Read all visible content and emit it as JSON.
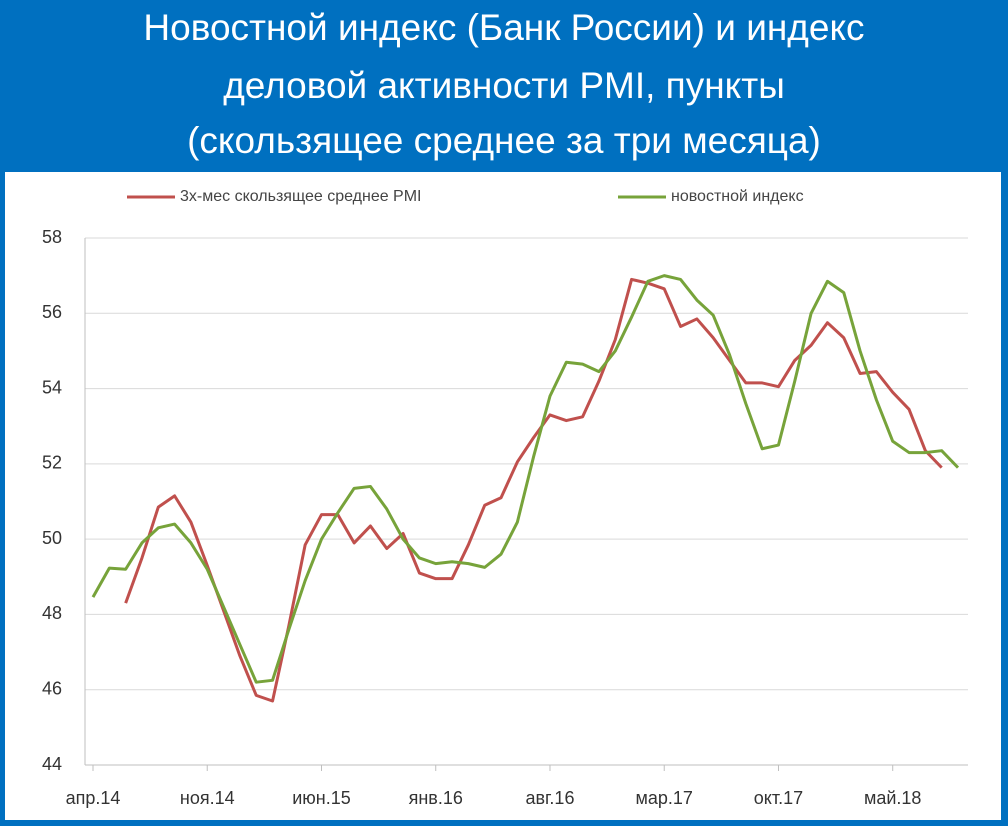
{
  "chart_data": {
    "type": "line",
    "title": [
      "Новостной индекс (Банк России) и индекс",
      "деловой активности PMI, пункты",
      "(скользящее среднее за три месяца)"
    ],
    "categories": [
      "апр.14",
      null,
      null,
      null,
      null,
      null,
      null,
      "ноя.14",
      null,
      null,
      null,
      null,
      null,
      null,
      "июн.15",
      null,
      null,
      null,
      null,
      null,
      null,
      "янв.16",
      null,
      null,
      null,
      null,
      null,
      null,
      "авг.16",
      null,
      null,
      null,
      null,
      null,
      null,
      "мар.17",
      null,
      null,
      null,
      null,
      null,
      null,
      "окт.17",
      null,
      null,
      null,
      null,
      null,
      null,
      "май.18",
      null,
      null,
      null,
      null
    ],
    "series": [
      {
        "name": "3х-мес скользящее среднее PMI",
        "color": "#c0504d",
        "values": [
          null,
          null,
          48.3,
          49.5,
          50.85,
          51.15,
          50.45,
          49.3,
          48.1,
          46.9,
          45.85,
          45.7,
          47.7,
          49.85,
          50.65,
          50.65,
          49.9,
          50.35,
          49.75,
          50.15,
          49.1,
          48.95,
          48.95,
          49.85,
          50.9,
          51.1,
          52.05,
          52.7,
          53.3,
          53.15,
          53.25,
          54.2,
          55.3,
          56.9,
          56.8,
          56.65,
          55.65,
          55.85,
          55.35,
          54.75,
          54.15,
          54.15,
          54.05,
          54.75,
          55.15,
          55.75,
          55.35,
          54.4,
          54.45,
          53.9,
          53.45,
          52.35,
          51.9,
          null
        ]
      },
      {
        "name": "новостной индекс",
        "color": "#77a33a",
        "values": [
          48.46,
          49.23,
          49.2,
          49.9,
          50.3,
          50.4,
          49.9,
          49.2,
          48.2,
          47.2,
          46.2,
          46.25,
          47.6,
          48.9,
          50.0,
          50.7,
          51.35,
          51.4,
          50.8,
          50.0,
          49.5,
          49.35,
          49.4,
          49.35,
          49.25,
          49.6,
          50.45,
          52.2,
          53.8,
          54.7,
          54.65,
          54.45,
          55.0,
          55.9,
          56.85,
          57.0,
          56.9,
          56.35,
          55.95,
          54.9,
          53.6,
          52.4,
          52.5,
          54.2,
          56.0,
          56.85,
          56.55,
          55.0,
          53.7,
          52.6,
          52.3,
          52.3,
          52.35,
          51.9
        ]
      }
    ],
    "ylim": [
      44,
      58
    ],
    "yticks": [
      44,
      46,
      48,
      50,
      52,
      54,
      56,
      58
    ],
    "grid": true
  }
}
